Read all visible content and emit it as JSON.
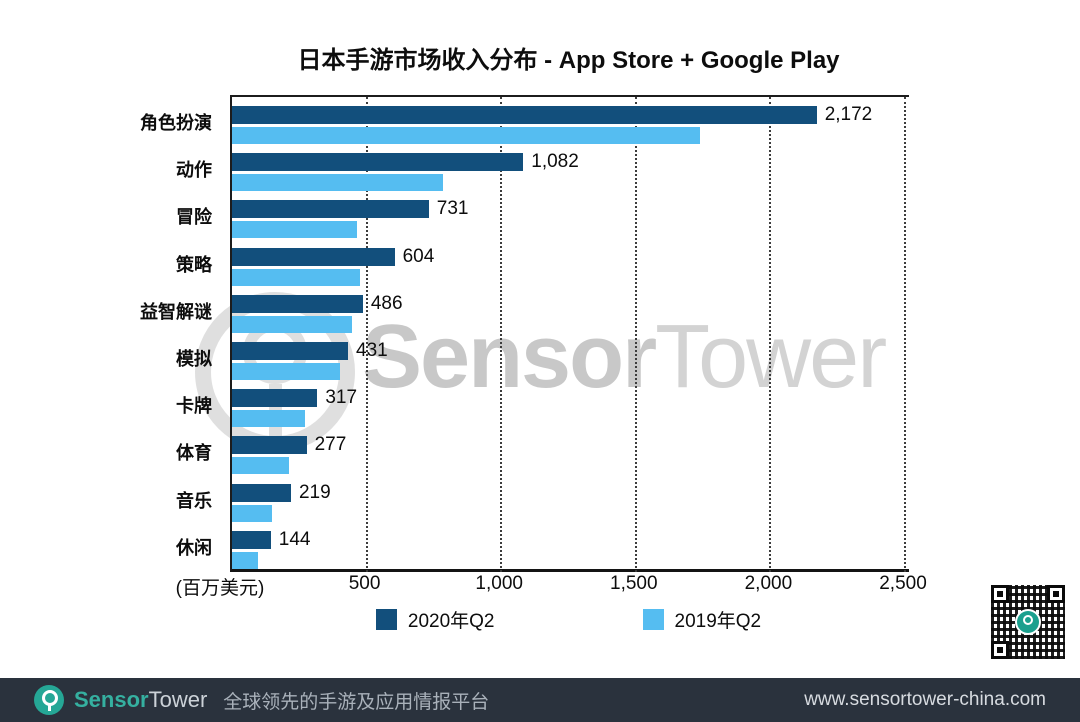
{
  "title": "日本手游市场收入分布 - App Store + Google Play",
  "chart_data": {
    "type": "bar",
    "orientation": "horizontal",
    "title": "日本手游市场收入分布 - App Store + Google Play",
    "categories": [
      "角色扮演",
      "动作",
      "冒险",
      "策略",
      "益智解谜",
      "模拟",
      "卡牌",
      "体育",
      "音乐",
      "休闲"
    ],
    "series": [
      {
        "name": "2020年Q2",
        "color": "#124f7c",
        "values": [
          2172,
          1082,
          731,
          604,
          486,
          431,
          317,
          277,
          219,
          144
        ],
        "labels": [
          "2,172",
          "1,082",
          "731",
          "604",
          "486",
          "431",
          "317",
          "277",
          "219",
          "144"
        ]
      },
      {
        "name": "2019年Q2",
        "color": "#55bdf1",
        "values": [
          1740,
          785,
          465,
          475,
          445,
          400,
          272,
          210,
          150,
          95
        ],
        "labels": []
      }
    ],
    "xlabel": "(百万美元)",
    "xlim": [
      0,
      2500
    ],
    "xticks": [
      500,
      1000,
      1500,
      2000,
      2500
    ],
    "xtick_labels": [
      "500",
      "1,000",
      "1,500",
      "2,000",
      "2,500"
    ],
    "grid": "dotted-vertical",
    "legend_position": "bottom"
  },
  "legend": {
    "items": [
      {
        "label": "2020年Q2",
        "color": "#124f7c"
      },
      {
        "label": "2019年Q2",
        "color": "#55bdf1"
      }
    ]
  },
  "watermark": {
    "sensor": "Sensor",
    "tower": "Tower",
    "logo": "sensortower-ring-logo"
  },
  "qr": {
    "label": "qr-code-with-sensortower-logo"
  },
  "footer": {
    "brand_sensor": "Sensor",
    "brand_tower": "Tower",
    "tagline": "全球领先的手游及应用情报平台",
    "url": "www.sensortower-china.com"
  },
  "colors": {
    "bar_2020": "#124f7c",
    "bar_2019": "#55bdf1",
    "footer_bg": "#2a323d",
    "brand_teal": "#25a796",
    "grid": "#3c3c3c"
  }
}
